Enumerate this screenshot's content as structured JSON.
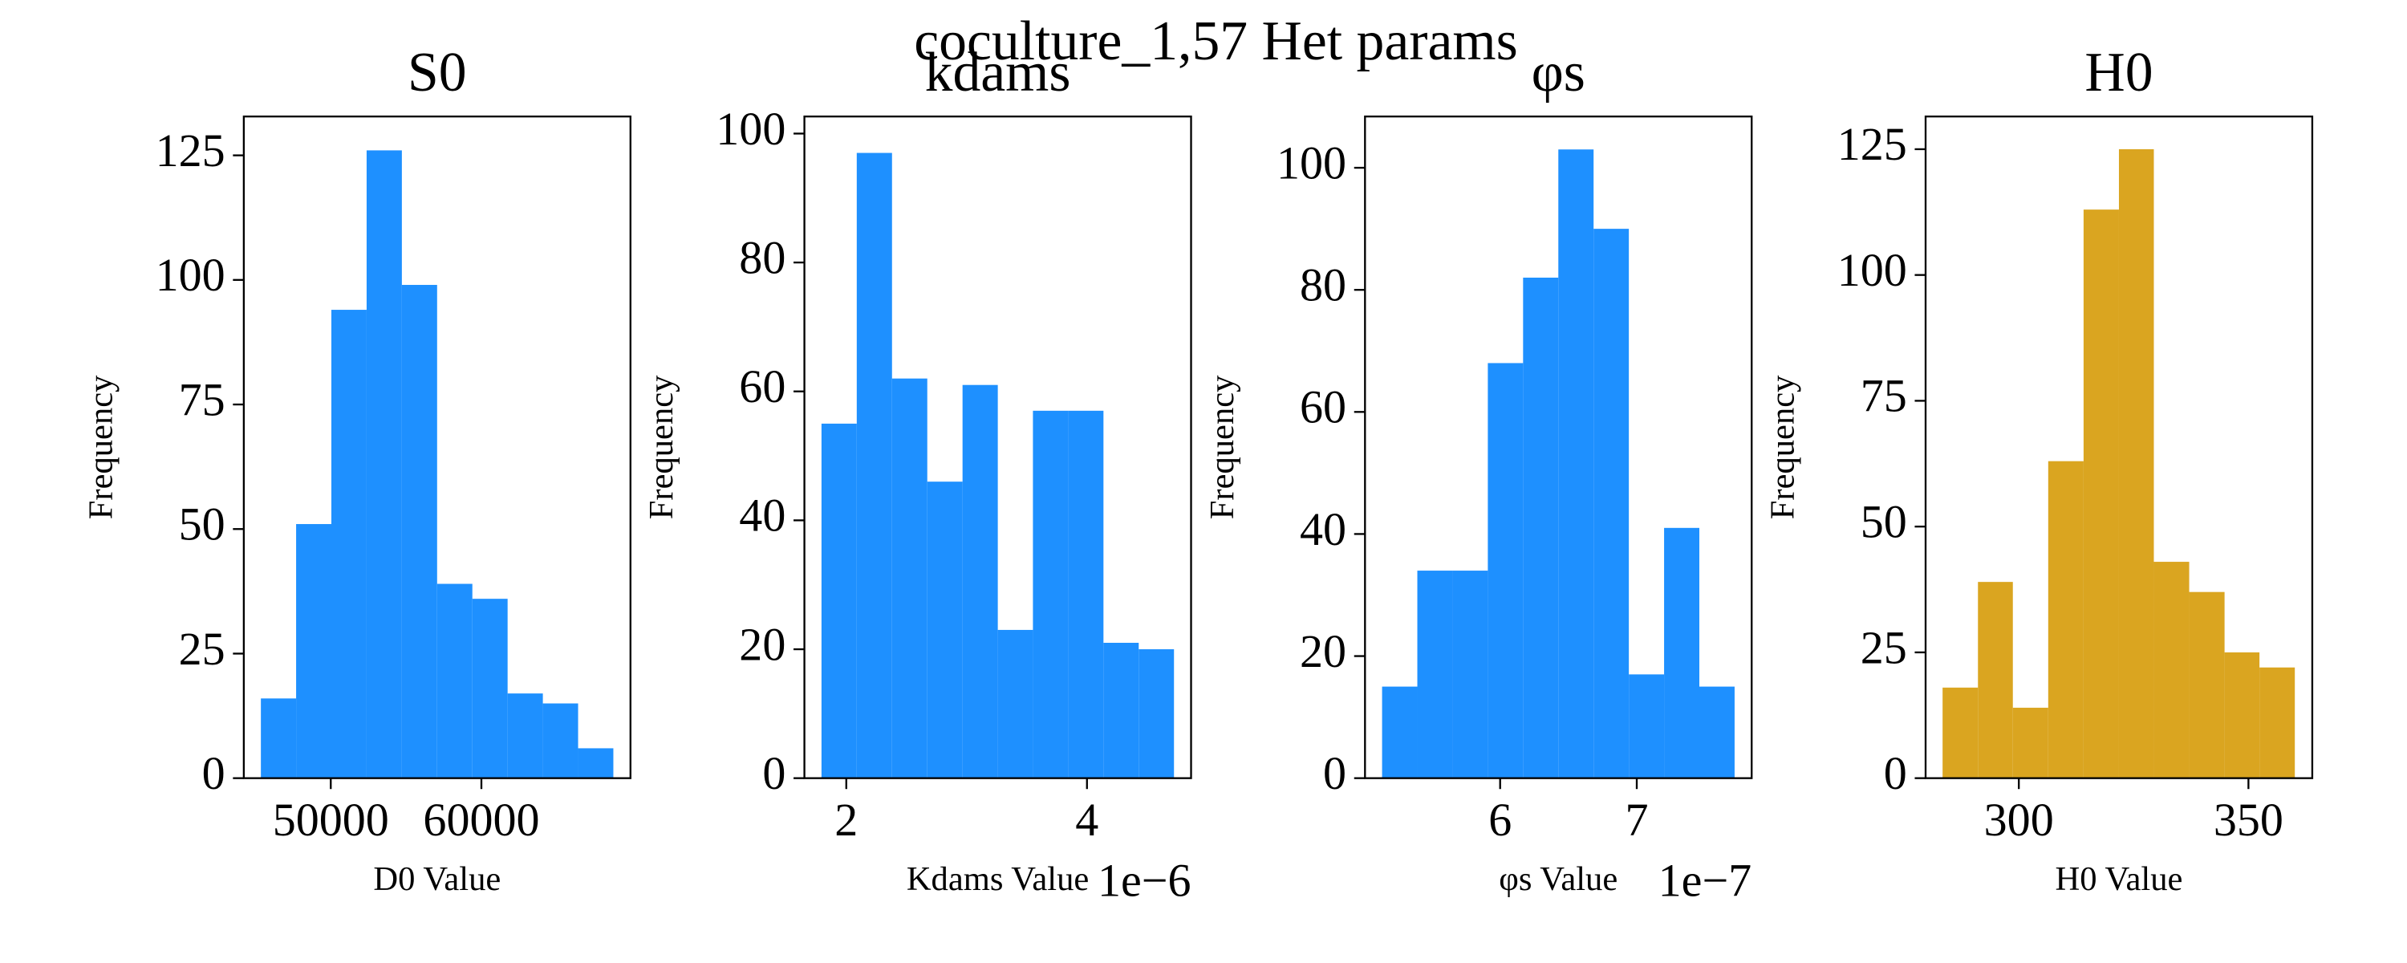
{
  "title": "coculture_1,57 Het params",
  "chart_data": [
    {
      "type": "histogram",
      "title": "S0",
      "xlabel": "D0 Value",
      "ylabel": "Frequency",
      "color": "#1e90ff",
      "bins": [
        45360,
        47700,
        50040,
        52380,
        54720,
        57060,
        59400,
        61740,
        64080,
        66420,
        68760
      ],
      "values": [
        16,
        51,
        94,
        126,
        99,
        39,
        36,
        17,
        15,
        6
      ],
      "xlim": [
        44227,
        69897
      ],
      "xticks": [
        50000,
        60000
      ],
      "ylim": [
        0,
        132.8
      ],
      "yticks": [
        0,
        25,
        50,
        75,
        100,
        125
      ]
    },
    {
      "type": "histogram",
      "title": "kdams",
      "xlabel": "Kdams Value",
      "ylabel": "Frequency",
      "color": "#1e90ff",
      "offset_text": "1e−6",
      "bins": [
        1.794,
        2.087,
        2.38,
        2.673,
        2.966,
        3.259,
        3.551,
        3.844,
        4.137,
        4.43,
        4.723
      ],
      "values": [
        55,
        97,
        62,
        46,
        61,
        23,
        57,
        57,
        21,
        20
      ],
      "xlim": [
        1.652,
        4.865
      ],
      "xticks": [
        2,
        4
      ],
      "ylim": [
        0,
        102.65
      ],
      "yticks": [
        0,
        20,
        40,
        60,
        80,
        100
      ]
    },
    {
      "type": "histogram",
      "title": "φs",
      "xlabel": "φs Value",
      "ylabel": "Frequency",
      "color": "#1e90ff",
      "offset_text": "1e−7",
      "bins": [
        5.136,
        5.394,
        5.652,
        5.91,
        6.168,
        6.426,
        6.684,
        6.942,
        7.2,
        7.458,
        7.716
      ],
      "values": [
        15,
        34,
        34,
        68,
        82,
        103,
        90,
        17,
        41,
        15
      ],
      "xlim": [
        5.011,
        7.841
      ],
      "xticks": [
        6,
        7
      ],
      "ylim": [
        0,
        108.4
      ],
      "yticks": [
        0,
        20,
        40,
        60,
        80,
        100
      ]
    },
    {
      "type": "histogram",
      "title": "H0",
      "xlabel": "H0 Value",
      "ylabel": "Frequency",
      "color": "#daa520",
      "bins": [
        283.4,
        291.1,
        298.7,
        306.4,
        314.1,
        321.8,
        329.4,
        337.1,
        344.8,
        352.4,
        360.1
      ],
      "values": [
        18,
        39,
        14,
        63,
        113,
        125,
        43,
        37,
        25,
        22
      ],
      "xlim": [
        279.7,
        363.9
      ],
      "xticks": [
        300,
        350
      ],
      "ylim": [
        0,
        131.5
      ],
      "yticks": [
        0,
        25,
        50,
        75,
        100,
        125
      ]
    }
  ]
}
